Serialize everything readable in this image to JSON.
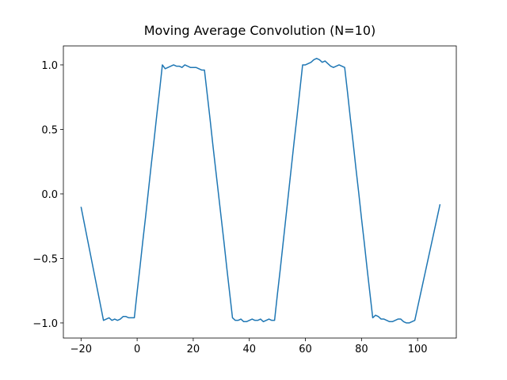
{
  "chart_data": {
    "type": "line",
    "title": "Moving Average Convolution (N=10)",
    "x": [
      -20,
      -19,
      -18,
      -17,
      -16,
      -15,
      -14,
      -13,
      -12,
      -11,
      -10,
      -9,
      -8,
      -7,
      -6,
      -5,
      -4,
      -3,
      -2,
      -1,
      0,
      1,
      2,
      3,
      4,
      5,
      6,
      7,
      8,
      9,
      10,
      11,
      12,
      13,
      14,
      15,
      16,
      17,
      18,
      19,
      20,
      21,
      22,
      23,
      24,
      25,
      26,
      27,
      28,
      29,
      30,
      31,
      32,
      33,
      34,
      35,
      36,
      37,
      38,
      39,
      40,
      41,
      42,
      43,
      44,
      45,
      46,
      47,
      48,
      49,
      50,
      51,
      52,
      53,
      54,
      55,
      56,
      57,
      58,
      59,
      60,
      61,
      62,
      63,
      64,
      65,
      66,
      67,
      68,
      69,
      70,
      71,
      72,
      73,
      74,
      75,
      76,
      77,
      78,
      79,
      80,
      81,
      82,
      83,
      84,
      85,
      86,
      87,
      88,
      89,
      90,
      91,
      92,
      93,
      94,
      95,
      96,
      97,
      98,
      99,
      100,
      101,
      102,
      103,
      104,
      105,
      106,
      107,
      108
    ],
    "values": [
      -0.1,
      -0.21,
      -0.32,
      -0.43,
      -0.54,
      -0.65,
      -0.76,
      -0.87,
      -0.98,
      -0.97,
      -0.96,
      -0.98,
      -0.97,
      -0.98,
      -0.97,
      -0.95,
      -0.95,
      -0.96,
      -0.96,
      -0.96,
      -0.76,
      -0.57,
      -0.37,
      -0.18,
      0.02,
      0.22,
      0.41,
      0.61,
      0.8,
      1.0,
      0.97,
      0.98,
      0.99,
      1.0,
      0.99,
      0.99,
      0.98,
      1.0,
      0.99,
      0.98,
      0.98,
      0.98,
      0.97,
      0.96,
      0.96,
      0.77,
      0.58,
      0.38,
      0.19,
      0.0,
      -0.19,
      -0.38,
      -0.58,
      -0.77,
      -0.96,
      -0.98,
      -0.98,
      -0.97,
      -0.99,
      -0.99,
      -0.98,
      -0.97,
      -0.98,
      -0.98,
      -0.97,
      -0.99,
      -0.98,
      -0.97,
      -0.98,
      -0.98,
      -0.78,
      -0.59,
      -0.39,
      -0.19,
      0.01,
      0.21,
      0.41,
      0.6,
      0.8,
      1.0,
      1.0,
      1.01,
      1.02,
      1.04,
      1.05,
      1.04,
      1.02,
      1.03,
      1.01,
      0.99,
      0.98,
      0.99,
      1.0,
      0.99,
      0.98,
      0.79,
      0.59,
      0.4,
      0.2,
      0.01,
      -0.19,
      -0.38,
      -0.58,
      -0.77,
      -0.96,
      -0.94,
      -0.95,
      -0.97,
      -0.97,
      -0.98,
      -0.99,
      -0.99,
      -0.98,
      -0.97,
      -0.97,
      -0.99,
      -1.0,
      -1.0,
      -0.99,
      -0.98,
      -0.88,
      -0.78,
      -0.68,
      -0.58,
      -0.48,
      -0.38,
      -0.28,
      -0.18,
      -0.08
    ],
    "color": "#1f77b4",
    "xlim": [
      -26.3,
      113.8
    ],
    "ylim": [
      -1.117,
      1.147
    ],
    "xticks": [
      {
        "value": -20,
        "label": "−20"
      },
      0,
      20,
      40,
      60,
      80,
      100
    ],
    "yticks": [
      {
        "value": -1,
        "label": "−1.0"
      },
      {
        "value": -0.5,
        "label": "−0.5"
      },
      {
        "value": 0,
        "label": "0.0"
      },
      {
        "value": 0.5,
        "label": "0.5"
      },
      {
        "value": 1,
        "label": "1.0"
      }
    ]
  }
}
